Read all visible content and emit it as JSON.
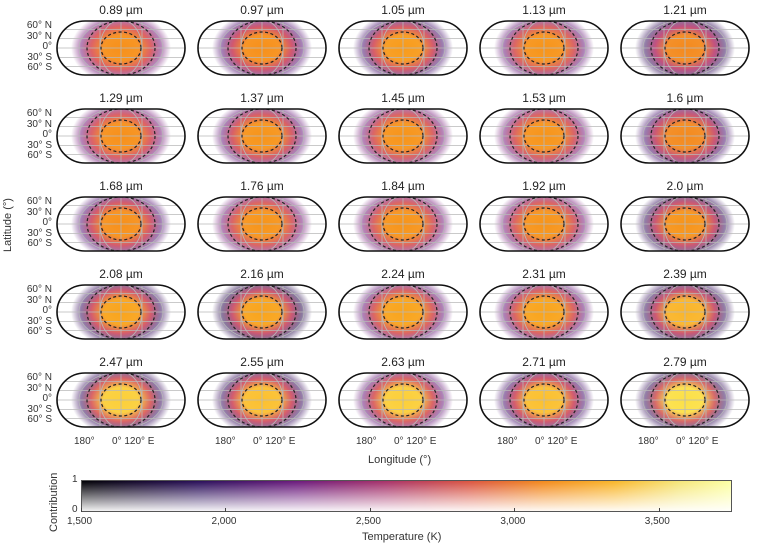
{
  "chart_data": {
    "type": "heatmap",
    "title": "",
    "description": "5x5 grid of Robinson-projection dayside temperature maps of an exoplanet at different wavelengths, with dashed contribution contours",
    "panels": [
      {
        "label": "0.89 µm"
      },
      {
        "label": "0.97 µm"
      },
      {
        "label": "1.05 µm"
      },
      {
        "label": "1.13 µm"
      },
      {
        "label": "1.21 µm"
      },
      {
        "label": "1.29 µm"
      },
      {
        "label": "1.37 µm"
      },
      {
        "label": "1.45 µm"
      },
      {
        "label": "1.53 µm"
      },
      {
        "label": "1.6 µm"
      },
      {
        "label": "1.68 µm"
      },
      {
        "label": "1.76 µm"
      },
      {
        "label": "1.84 µm"
      },
      {
        "label": "1.92 µm"
      },
      {
        "label": "2.0 µm"
      },
      {
        "label": "2.08 µm"
      },
      {
        "label": "2.16 µm"
      },
      {
        "label": "2.24 µm"
      },
      {
        "label": "2.31 µm"
      },
      {
        "label": "2.39 µm"
      },
      {
        "label": "2.47 µm"
      },
      {
        "label": "2.55 µm"
      },
      {
        "label": "2.63 µm"
      },
      {
        "label": "2.71 µm"
      },
      {
        "label": "2.79 µm"
      }
    ],
    "ylabel": "Latitude (°)",
    "xlabel": "Longitude (°)",
    "lat_ticks": [
      "60° N",
      "30° N",
      "0°",
      "30° S",
      "60° S"
    ],
    "lon_ticks": [
      "180°",
      "0°",
      "120° E"
    ],
    "colorbar": {
      "xlabel": "Temperature (K)",
      "ylabel": "Contribution",
      "x_ticks": [
        "1,500",
        "2,000",
        "2,500",
        "3,000",
        "3,500"
      ],
      "x_range": [
        1500,
        3750
      ],
      "y_ticks": [
        "0",
        "1"
      ],
      "colormap": "inferno"
    }
  },
  "labels": {
    "ylabel": "Latitude (°)",
    "xlabel": "Longitude (°)",
    "lat": [
      "60° N",
      "30° N",
      "0°",
      "30° S",
      "60° S"
    ],
    "lon": [
      "180°",
      "0° 120° E"
    ],
    "cbar_xlabel": "Temperature (K)",
    "cbar_ylabel": "Contribution",
    "cbar_ticks": [
      "1,500",
      "2,000",
      "2,500",
      "3,000",
      "3,500"
    ],
    "cbar_y": [
      "1",
      "0"
    ]
  }
}
